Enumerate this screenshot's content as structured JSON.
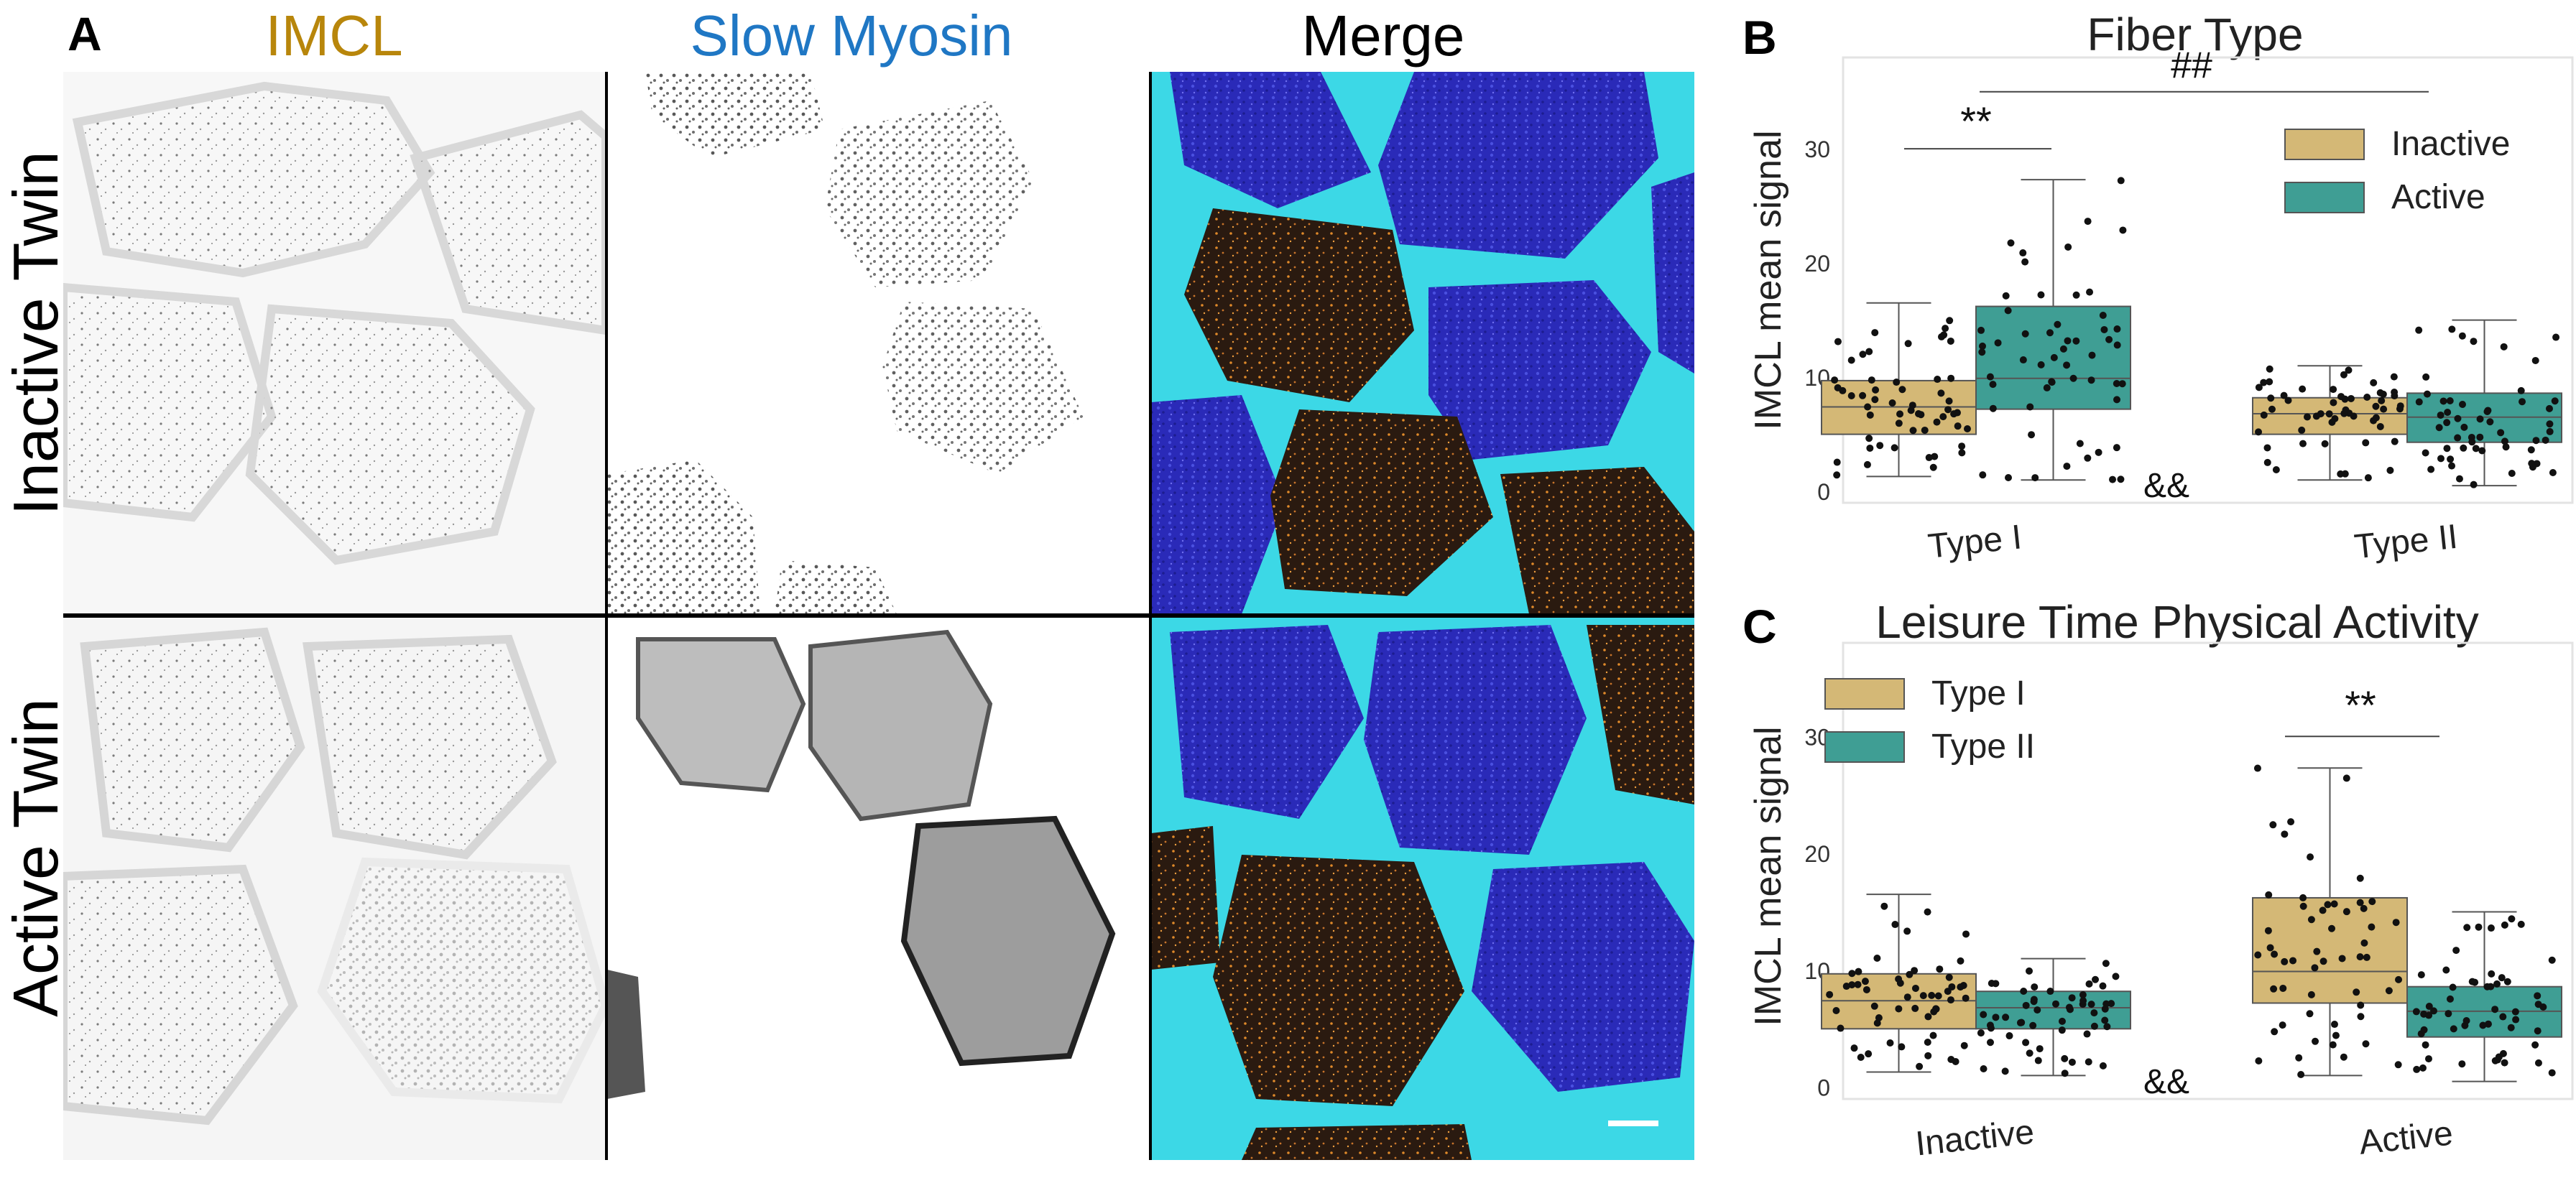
{
  "panel_a": {
    "letter": "A",
    "columns": [
      {
        "label": "IMCL",
        "color": "#b8860b"
      },
      {
        "label": "Slow Myosin",
        "color": "#1f77c4"
      },
      {
        "label": "Merge",
        "color": "#000000"
      }
    ],
    "rows": [
      "Inactive Twin",
      "Active Twin"
    ]
  },
  "colors": {
    "tan": "#d4b876",
    "teal": "#3f9e94"
  },
  "chart_data": [
    {
      "panel": "B",
      "type": "box",
      "title": "Fiber Type",
      "ylabel": "IMCL mean signal",
      "categories": [
        "Type I",
        "Type II"
      ],
      "ylim": [
        -1,
        38
      ],
      "yticks": [
        0,
        10,
        20,
        30
      ],
      "legend": {
        "placement": "top-right",
        "entries": [
          "Inactive",
          "Active"
        ]
      },
      "series": [
        {
          "name": "Inactive",
          "color": "#d4b876",
          "boxes": [
            {
              "category": "Type I",
              "min": 1.3,
              "q1": 5.0,
              "median": 7.4,
              "q3": 9.7,
              "max": 16.5
            },
            {
              "category": "Type II",
              "min": 1.0,
              "q1": 5.0,
              "median": 6.8,
              "q3": 8.2,
              "max": 11.0
            }
          ]
        },
        {
          "name": "Active",
          "color": "#3f9e94",
          "boxes": [
            {
              "category": "Type I",
              "min": 1.0,
              "q1": 7.2,
              "median": 9.9,
              "q3": 16.2,
              "max": 27.3
            },
            {
              "category": "Type II",
              "min": 0.5,
              "q1": 4.3,
              "median": 6.5,
              "q3": 8.6,
              "max": 15.0
            }
          ]
        }
      ],
      "annotations": [
        {
          "text": "**",
          "placement": "over Type I"
        },
        {
          "text": "##",
          "placement": "across Type I and Type II"
        },
        {
          "text": "&&",
          "placement": "between groups"
        }
      ]
    },
    {
      "panel": "C",
      "type": "box",
      "title": "Leisure Time Physical Activity",
      "ylabel": "IMCL mean signal",
      "categories": [
        "Inactive",
        "Active"
      ],
      "ylim": [
        -1,
        38
      ],
      "yticks": [
        0,
        10,
        20,
        30
      ],
      "legend": {
        "placement": "top-left",
        "entries": [
          "Type I",
          "Type II"
        ]
      },
      "series": [
        {
          "name": "Type I",
          "color": "#d4b876",
          "boxes": [
            {
              "category": "Inactive",
              "min": 1.3,
              "q1": 5.0,
              "median": 7.4,
              "q3": 9.7,
              "max": 16.5
            },
            {
              "category": "Active",
              "min": 1.0,
              "q1": 7.2,
              "median": 9.9,
              "q3": 16.2,
              "max": 27.3
            }
          ]
        },
        {
          "name": "Type II",
          "color": "#3f9e94",
          "boxes": [
            {
              "category": "Inactive",
              "min": 1.0,
              "q1": 5.0,
              "median": 6.8,
              "q3": 8.2,
              "max": 11.0
            },
            {
              "category": "Active",
              "min": 0.5,
              "q1": 4.3,
              "median": 6.5,
              "q3": 8.6,
              "max": 15.0
            }
          ]
        }
      ],
      "annotations": [
        {
          "text": "**",
          "placement": "over Active"
        },
        {
          "text": "&&",
          "placement": "between groups"
        }
      ]
    }
  ]
}
